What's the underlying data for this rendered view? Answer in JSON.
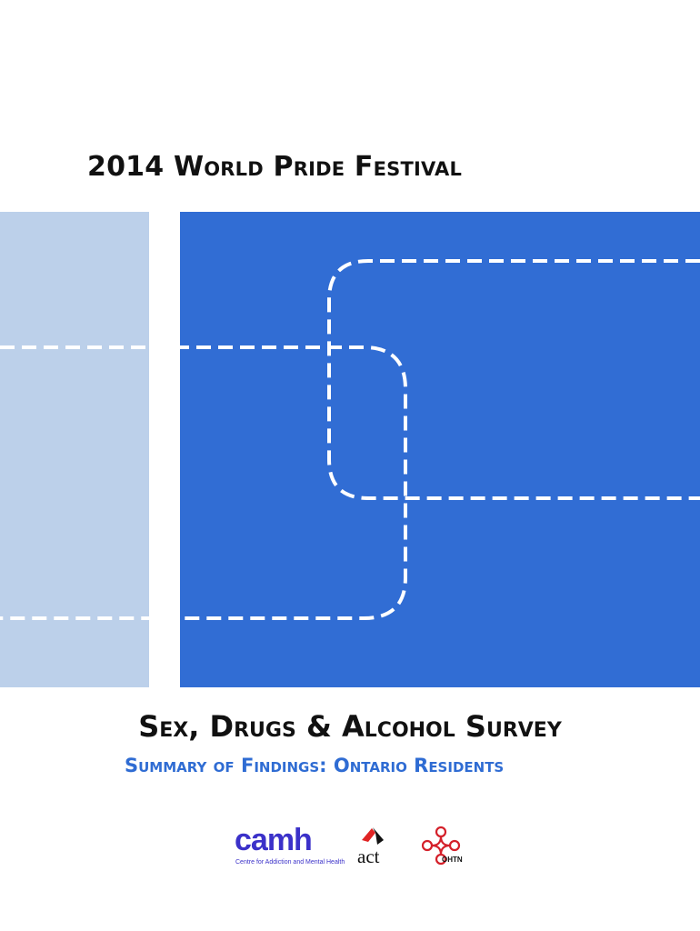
{
  "header": {
    "title": "2014 World Pride Festival"
  },
  "survey": {
    "title": "Sex, Drugs & Alcohol Survey",
    "subtitle": "Summary of Findings: Ontario Residents"
  },
  "logos": {
    "camh": {
      "wordmark": "camh",
      "tagline": "Centre for Addiction and Mental Health"
    },
    "act": {
      "wordmark": "act"
    },
    "ohtn": {
      "wordmark": "OHTN"
    }
  },
  "colors": {
    "panel_blue": "#316dd4",
    "light_blue": "#bcd0ea",
    "accent_blue": "#2f6cd3",
    "camh_purple": "#3b31c9",
    "act_red": "#e02424",
    "ohtn_red": "#d4202a",
    "title_black": "#111111"
  }
}
